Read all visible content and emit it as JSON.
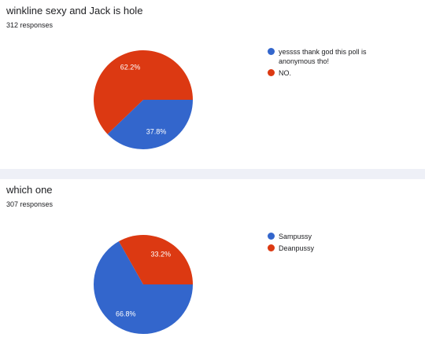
{
  "chart_data": [
    {
      "type": "pie",
      "title": "winkline sexy and Jack is hole",
      "subtitle": "312 responses",
      "categories": [
        "yessss thank god this poll is anonymous tho!",
        "NO."
      ],
      "values": [
        37.8,
        62.2
      ],
      "value_labels": [
        "37.8%",
        "62.2%"
      ],
      "colors": [
        "#3366cc",
        "#dc3912"
      ]
    },
    {
      "type": "pie",
      "title": "which one",
      "subtitle": "307 responses",
      "categories": [
        "Sampussy",
        "Deanpussy"
      ],
      "values": [
        66.8,
        33.2
      ],
      "value_labels": [
        "66.8%",
        "33.2%"
      ],
      "colors": [
        "#3366cc",
        "#dc3912"
      ]
    }
  ]
}
